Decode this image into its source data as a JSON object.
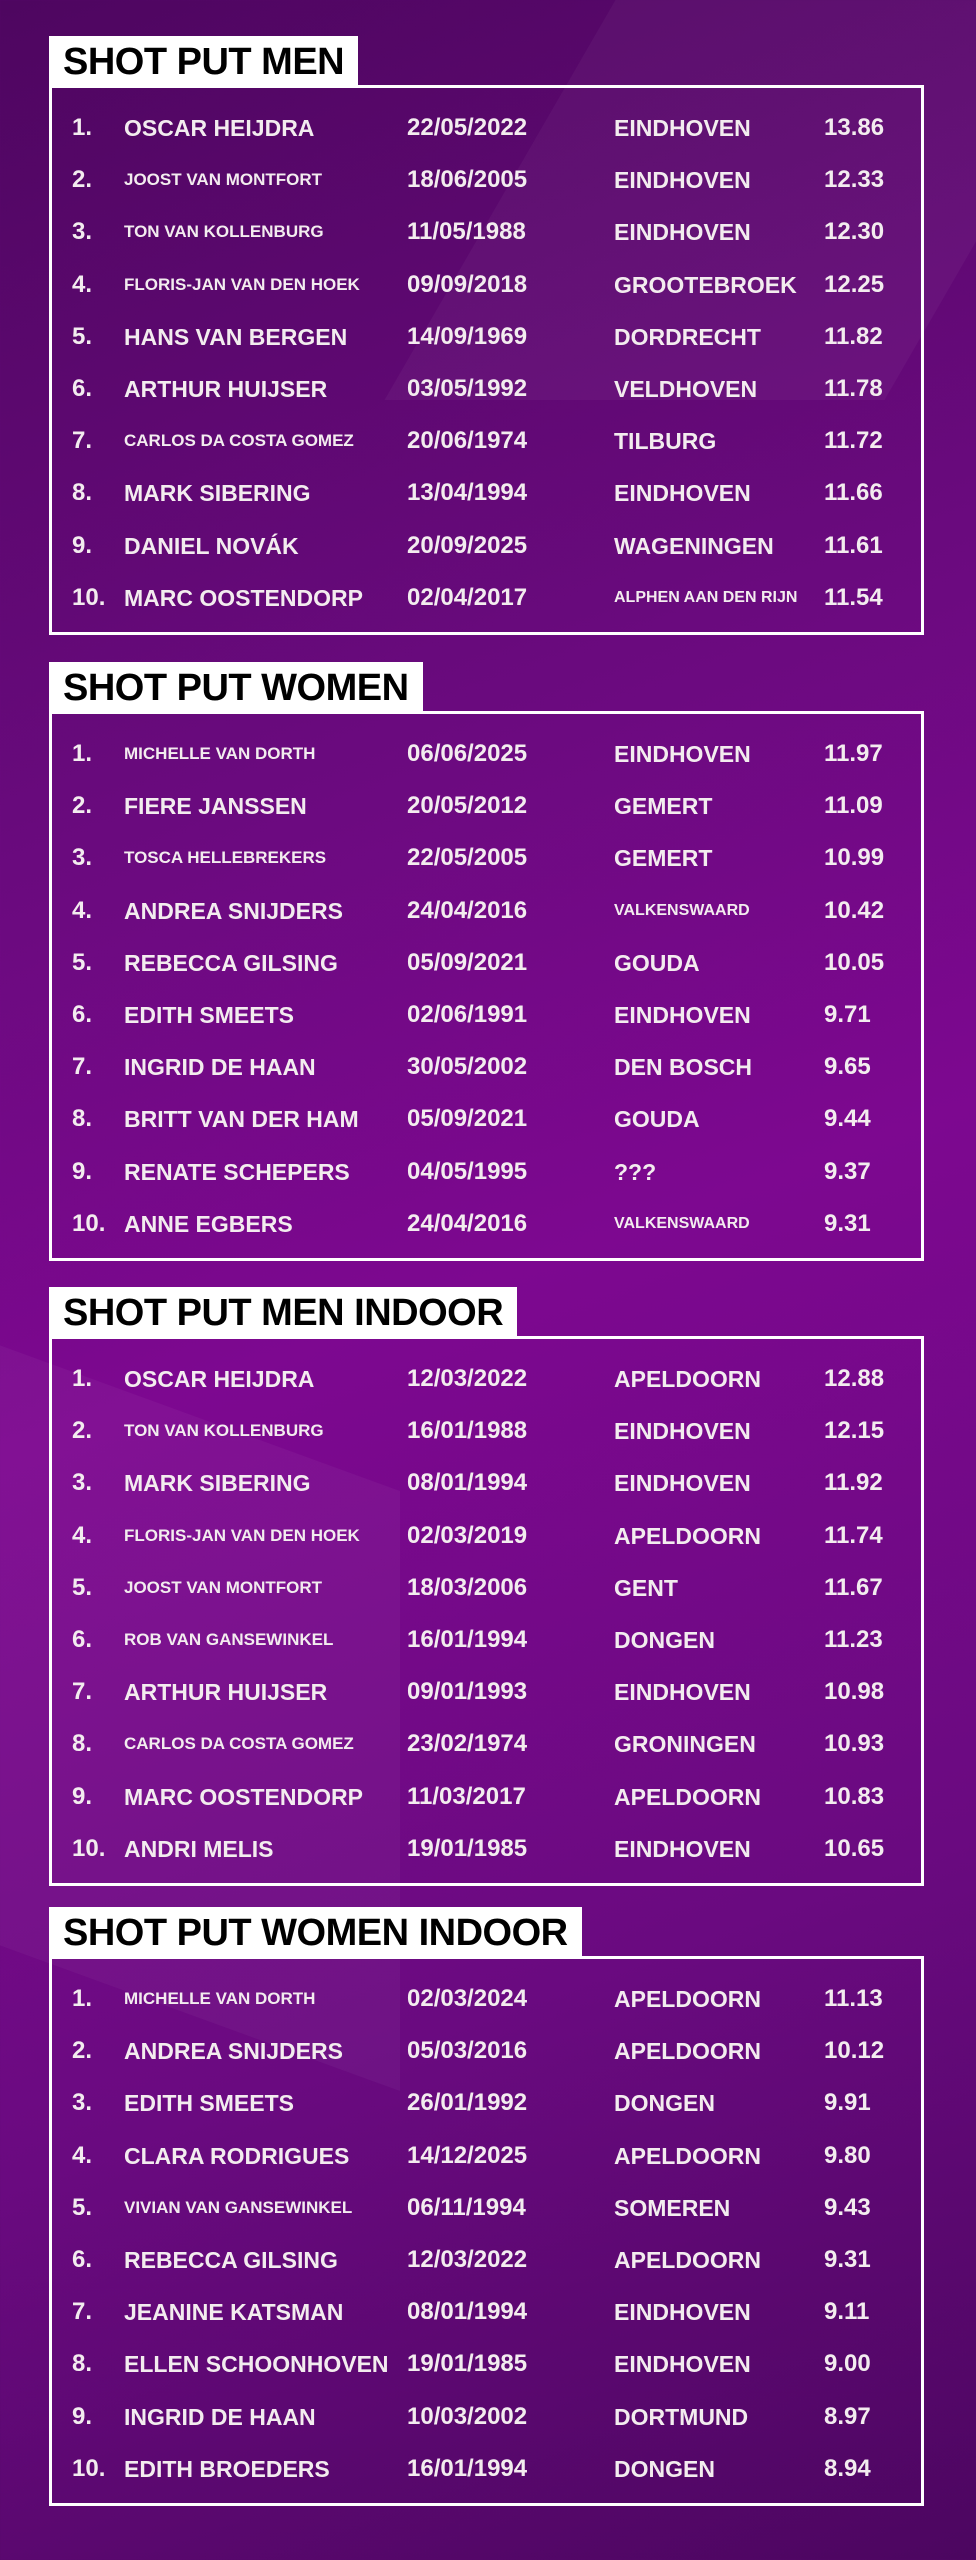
{
  "sections": [
    {
      "title": "SHOT PUT MEN",
      "rows": [
        [
          "1.",
          "OSCAR HEIJDRA",
          "22/05/2022",
          "EINDHOVEN",
          "13.86"
        ],
        [
          "2.",
          "JOOST VAN MONTFORT",
          "18/06/2005",
          "EINDHOVEN",
          "12.33"
        ],
        [
          "3.",
          "TON VAN KOLLENBURG",
          "11/05/1988",
          "EINDHOVEN",
          "12.30"
        ],
        [
          "4.",
          "FLORIS-JAN VAN DEN HOEK",
          "09/09/2018",
          "GROOTEBROEK",
          "12.25"
        ],
        [
          "5.",
          "HANS VAN BERGEN",
          "14/09/1969",
          "DORDRECHT",
          "11.82"
        ],
        [
          "6.",
          "ARTHUR HUIJSER",
          "03/05/1992",
          "VELDHOVEN",
          "11.78"
        ],
        [
          "7.",
          "CARLOS DA COSTA GOMEZ",
          "20/06/1974",
          "TILBURG",
          "11.72"
        ],
        [
          "8.",
          "MARK SIBERING",
          "13/04/1994",
          "EINDHOVEN",
          "11.66"
        ],
        [
          "9.",
          "DANIEL NOVÁK",
          "20/09/2025",
          "WAGENINGEN",
          "11.61"
        ],
        [
          "10.",
          "MARC OOSTENDORP",
          "02/04/2017",
          "ALPHEN AAN DEN RIJN",
          "11.54"
        ]
      ]
    },
    {
      "title": "SHOT PUT WOMEN",
      "rows": [
        [
          "1.",
          "MICHELLE VAN DORTH",
          "06/06/2025",
          "EINDHOVEN",
          "11.97"
        ],
        [
          "2.",
          "FIERE JANSSEN",
          "20/05/2012",
          "GEMERT",
          "11.09"
        ],
        [
          "3.",
          "TOSCA HELLEBREKERS",
          "22/05/2005",
          "GEMERT",
          "10.99"
        ],
        [
          "4.",
          "ANDREA SNIJDERS",
          "24/04/2016",
          "VALKENSWAARD",
          "10.42"
        ],
        [
          "5.",
          "REBECCA GILSING",
          "05/09/2021",
          "GOUDA",
          "10.05"
        ],
        [
          "6.",
          "EDITH SMEETS",
          "02/06/1991",
          "EINDHOVEN",
          "9.71"
        ],
        [
          "7.",
          "INGRID DE HAAN",
          "30/05/2002",
          "DEN BOSCH",
          "9.65"
        ],
        [
          "8.",
          "BRITT VAN DER HAM",
          "05/09/2021",
          "GOUDA",
          "9.44"
        ],
        [
          "9.",
          "RENATE SCHEPERS",
          "04/05/1995",
          "???",
          "9.37"
        ],
        [
          "10.",
          "ANNE EGBERS",
          "24/04/2016",
          "VALKENSWAARD",
          "9.31"
        ]
      ]
    },
    {
      "title": "SHOT PUT MEN INDOOR",
      "rows": [
        [
          "1.",
          "OSCAR HEIJDRA",
          "12/03/2022",
          "APELDOORN",
          "12.88"
        ],
        [
          "2.",
          "TON VAN KOLLENBURG",
          "16/01/1988",
          "EINDHOVEN",
          "12.15"
        ],
        [
          "3.",
          "MARK SIBERING",
          "08/01/1994",
          "EINDHOVEN",
          "11.92"
        ],
        [
          "4.",
          "FLORIS-JAN VAN DEN HOEK",
          "02/03/2019",
          "APELDOORN",
          "11.74"
        ],
        [
          "5.",
          "JOOST VAN MONTFORT",
          "18/03/2006",
          "GENT",
          "11.67"
        ],
        [
          "6.",
          "ROB VAN GANSEWINKEL",
          "16/01/1994",
          "DONGEN",
          "11.23"
        ],
        [
          "7.",
          "ARTHUR HUIJSER",
          "09/01/1993",
          "EINDHOVEN",
          "10.98"
        ],
        [
          "8.",
          "CARLOS DA COSTA GOMEZ",
          "23/02/1974",
          "GRONINGEN",
          "10.93"
        ],
        [
          "9.",
          "MARC OOSTENDORP",
          "11/03/2017",
          "APELDOORN",
          "10.83"
        ],
        [
          "10.",
          "ANDRI MELIS",
          "19/01/1985",
          "EINDHOVEN",
          "10.65"
        ]
      ]
    },
    {
      "title": "SHOT PUT WOMEN INDOOR",
      "rows": [
        [
          "1.",
          "MICHELLE VAN DORTH",
          "02/03/2024",
          "APELDOORN",
          "11.13"
        ],
        [
          "2.",
          "ANDREA SNIJDERS",
          "05/03/2016",
          "APELDOORN",
          "10.12"
        ],
        [
          "3.",
          "EDITH SMEETS",
          "26/01/1992",
          "DONGEN",
          "9.91"
        ],
        [
          "4.",
          "CLARA RODRIGUES",
          "14/12/2025",
          "APELDOORN",
          "9.80"
        ],
        [
          "5.",
          "VIVIAN VAN GANSEWINKEL",
          "06/11/1994",
          "SOMEREN",
          "9.43"
        ],
        [
          "6.",
          "REBECCA GILSING",
          "12/03/2022",
          "APELDOORN",
          "9.31"
        ],
        [
          "7.",
          "JEANINE KATSMAN",
          "08/01/1994",
          "EINDHOVEN",
          "9.11"
        ],
        [
          "8.",
          "ELLEN SCHOONHOVEN",
          "19/01/1985",
          "EINDHOVEN",
          "9.00"
        ],
        [
          "9.",
          "INGRID DE HAAN",
          "10/03/2002",
          "DORTMUND",
          "8.97"
        ],
        [
          "10.",
          "EDITH BROEDERS",
          "16/01/1994",
          "DONGEN",
          "8.94"
        ]
      ]
    }
  ]
}
